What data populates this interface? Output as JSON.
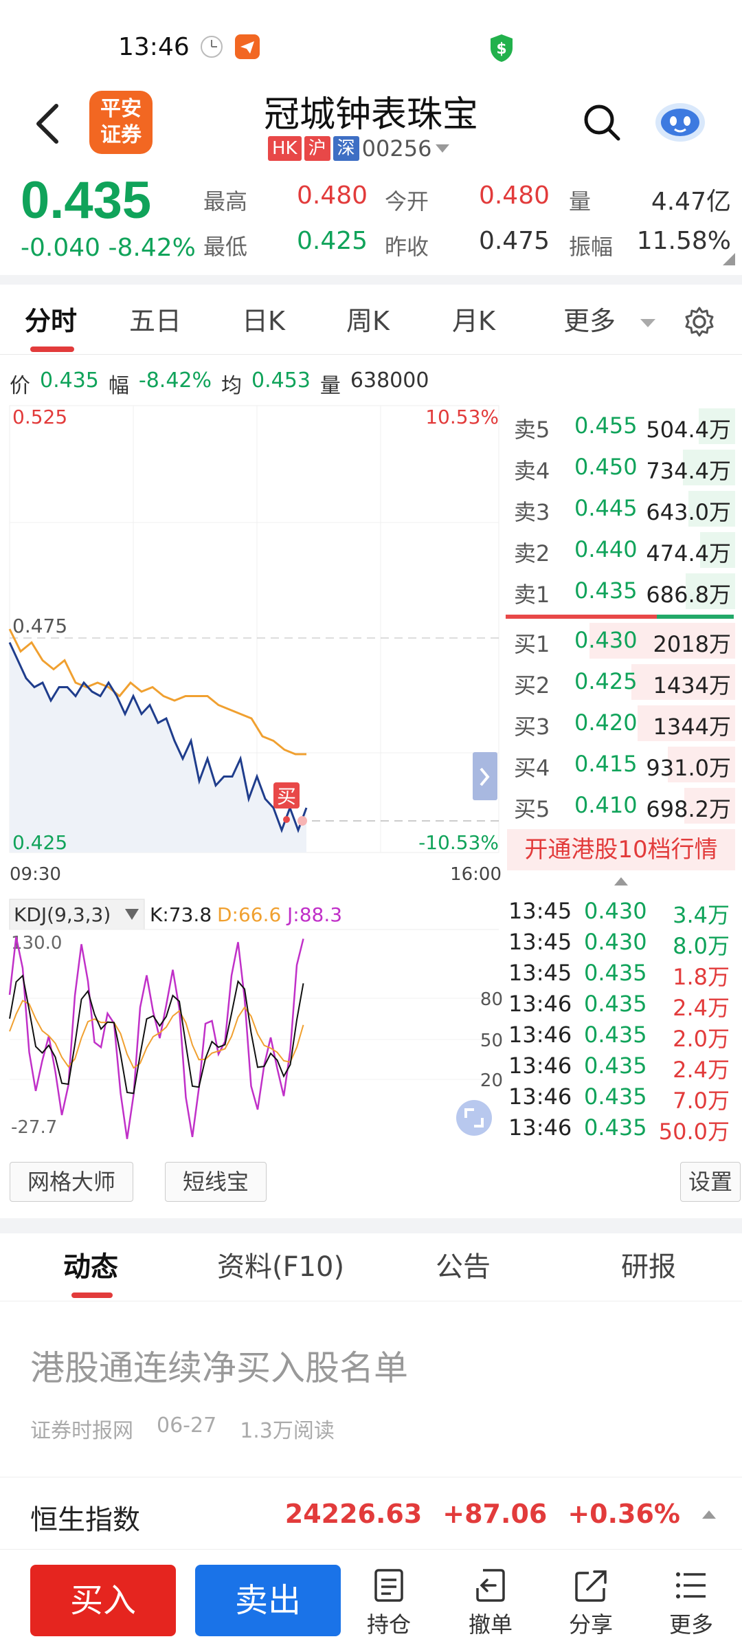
{
  "status_bar": {
    "time": "13:46"
  },
  "header": {
    "logo_text_1": "平安",
    "logo_text_2": "证券",
    "stock_name": "冠城钟表珠宝",
    "markets": [
      {
        "label": "HK",
        "color": "#e84848"
      },
      {
        "label": "沪",
        "color": "#e84848"
      },
      {
        "label": "深",
        "color": "#3e6fc4"
      }
    ],
    "code": "00256"
  },
  "quote": {
    "price": "0.435",
    "change": "-0.040 -8.42%",
    "high_label": "最高",
    "high": "0.480",
    "low_label": "最低",
    "low": "0.425",
    "open_label": "今开",
    "open": "0.480",
    "prev_close_label": "昨收",
    "prev_close": "0.475",
    "volume_label": "量",
    "volume": "4.47亿",
    "amplitude_label": "振幅",
    "amplitude": "11.58%"
  },
  "chart_tabs": [
    "分时",
    "五日",
    "日K",
    "周K",
    "月K",
    "更多"
  ],
  "info_line": {
    "price_label": "价",
    "price": "0.435",
    "range_label": "幅",
    "range": "-8.42%",
    "avg_label": "均",
    "avg": "0.453",
    "vol_label": "量",
    "vol": "638000"
  },
  "chart_data": {
    "type": "line",
    "y_top_label": "0.525",
    "y_mid_label": "0.475",
    "y_bottom_label": "0.425",
    "pct_top": "10.53%",
    "pct_bottom": "-10.53%",
    "x_start": "09:30",
    "x_end": "16:00",
    "ylim": [
      0.425,
      0.525
    ],
    "series": [
      {
        "values": [
          0.475,
          0.47,
          0.472,
          0.468,
          0.466,
          0.468,
          0.463,
          0.462,
          0.463,
          0.462,
          0.46,
          0.463,
          0.461,
          0.462,
          0.46,
          0.459,
          0.46,
          0.46,
          0.46,
          0.458,
          0.457,
          0.456,
          0.455,
          0.451,
          0.45,
          0.448,
          0.447,
          0.447
        ]
      },
      {
        "values": [
          0.472,
          0.468,
          0.464,
          0.462,
          0.463,
          0.459,
          0.462,
          0.462,
          0.46,
          0.463,
          0.461,
          0.46,
          0.463,
          0.46,
          0.456,
          0.46,
          0.456,
          0.458,
          0.454,
          0.455,
          0.45,
          0.446,
          0.45,
          0.441,
          0.446,
          0.44,
          0.442,
          0.442,
          0.446,
          0.437,
          0.442,
          0.437,
          0.435,
          0.43,
          0.435,
          0.43,
          0.435
        ]
      }
    ],
    "buy_marker": "买",
    "indicator": {
      "name": "KDJ(9,3,3)",
      "k_label": "K:73.8",
      "d_label": "D:66.6",
      "j_label": "J:88.3",
      "top": "130.0",
      "bottom": "-27.7",
      "levels": [
        "80",
        "50",
        "20"
      ]
    }
  },
  "order_book": {
    "asks": [
      {
        "label": "卖5",
        "price": "0.455",
        "vol": "504.4万",
        "w": 0.25
      },
      {
        "label": "卖4",
        "price": "0.450",
        "vol": "734.4万",
        "w": 0.36
      },
      {
        "label": "卖3",
        "price": "0.445",
        "vol": "643.0万",
        "w": 0.32
      },
      {
        "label": "卖2",
        "price": "0.440",
        "vol": "474.4万",
        "w": 0.24
      },
      {
        "label": "卖1",
        "price": "0.435",
        "vol": "686.8万",
        "w": 0.34
      }
    ],
    "bids": [
      {
        "label": "买1",
        "price": "0.430",
        "vol": "2018万",
        "w": 1.0
      },
      {
        "label": "买2",
        "price": "0.425",
        "vol": "1434万",
        "w": 0.71
      },
      {
        "label": "买3",
        "price": "0.420",
        "vol": "1344万",
        "w": 0.67
      },
      {
        "label": "买4",
        "price": "0.415",
        "vol": "931.0万",
        "w": 0.46
      },
      {
        "label": "买5",
        "price": "0.410",
        "vol": "698.2万",
        "w": 0.35
      }
    ],
    "cta": "开通港股10档行情"
  },
  "ticks": [
    {
      "time": "13:45",
      "price": "0.430",
      "vol": "3.4万",
      "color": "#10a35a"
    },
    {
      "time": "13:45",
      "price": "0.430",
      "vol": "8.0万",
      "color": "#10a35a"
    },
    {
      "time": "13:45",
      "price": "0.435",
      "vol": "1.8万",
      "color": "#e23b3b"
    },
    {
      "time": "13:46",
      "price": "0.435",
      "vol": "2.4万",
      "color": "#e23b3b"
    },
    {
      "time": "13:46",
      "price": "0.435",
      "vol": "2.0万",
      "color": "#e23b3b"
    },
    {
      "time": "13:46",
      "price": "0.435",
      "vol": "2.4万",
      "color": "#e23b3b"
    },
    {
      "time": "13:46",
      "price": "0.435",
      "vol": "7.0万",
      "color": "#e23b3b"
    },
    {
      "time": "13:46",
      "price": "0.435",
      "vol": "50.0万",
      "color": "#e23b3b"
    }
  ],
  "tools": {
    "grid": "网格大师",
    "short": "短线宝",
    "settings": "设置"
  },
  "news_tabs": [
    "动态",
    "资料(F10)",
    "公告",
    "研报"
  ],
  "news": {
    "title": "港股通连续净买入股名单",
    "source": "证券时报网",
    "date": "06-27",
    "reads": "1.3万阅读"
  },
  "index_bar": {
    "name": "恒生指数",
    "value": "24226.63",
    "change": "+87.06",
    "pct": "+0.36%"
  },
  "bottom_bar": {
    "buy": "买入",
    "sell": "卖出",
    "hold": "持仓",
    "cancel": "撤单",
    "share": "分享",
    "more": "更多"
  }
}
